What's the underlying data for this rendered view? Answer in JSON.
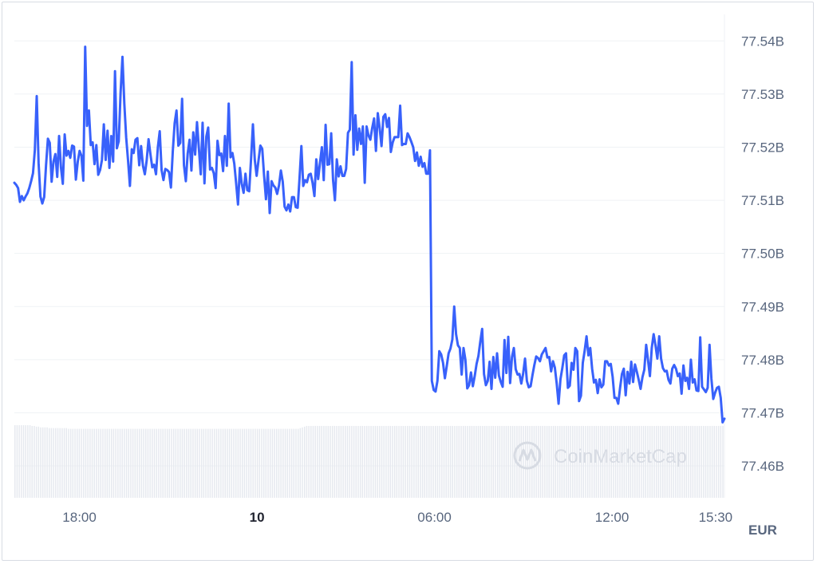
{
  "chart_data": {
    "type": "line",
    "title": "",
    "xlabel": "",
    "ylabel": "",
    "currency": "EUR",
    "watermark": "CoinMarketCap",
    "line_color": "#3861fb",
    "volume_color": "#e6e9ef",
    "y_unit": "B",
    "ylim": [
      77.454,
      77.545
    ],
    "y_ticks": [
      77.54,
      77.53,
      77.52,
      77.51,
      77.5,
      77.49,
      77.48,
      77.47,
      77.46
    ],
    "y_tick_labels": [
      "77.54B",
      "77.53B",
      "77.52B",
      "77.51B",
      "77.50B",
      "77.49B",
      "77.48B",
      "77.47B",
      "77.46B"
    ],
    "x_range_hours": [
      0,
      24
    ],
    "x_ticks": [
      {
        "label": "18:00",
        "hour": 2.2,
        "bold": false
      },
      {
        "label": "10",
        "hour": 8.2,
        "bold": true
      },
      {
        "label": "06:00",
        "hour": 14.2,
        "bold": false
      },
      {
        "label": "12:00",
        "hour": 20.2,
        "bold": false
      },
      {
        "label": "15:30",
        "hour": 23.7,
        "bold": false
      }
    ],
    "series": [
      {
        "values": [
          77.5133,
          77.5129,
          77.5123,
          77.5097,
          77.5108,
          77.51,
          77.5107,
          77.5113,
          77.5123,
          77.5136,
          77.5151,
          77.5195,
          77.5296,
          77.517,
          77.5107,
          77.5094,
          77.5106,
          77.5166,
          77.5216,
          77.5208,
          77.5135,
          77.5173,
          77.5187,
          77.5144,
          77.5221,
          77.5162,
          77.5131,
          77.5224,
          77.5184,
          77.5193,
          77.518,
          77.5203,
          77.5201,
          77.5139,
          77.5172,
          77.5193,
          77.5184,
          77.5137,
          77.5389,
          77.524,
          77.5269,
          77.5204,
          77.5209,
          77.5168,
          77.5204,
          77.5148,
          77.5157,
          77.5176,
          77.5243,
          77.5176,
          77.5231,
          77.5161,
          77.5221,
          77.5173,
          77.5343,
          77.5198,
          77.5211,
          77.5303,
          77.537,
          77.5282,
          77.5218,
          77.5175,
          77.5127,
          77.5196,
          77.5189,
          77.5214,
          77.5217,
          77.5166,
          77.5202,
          77.5165,
          77.5149,
          77.5175,
          77.5215,
          77.5187,
          77.5162,
          77.5167,
          77.5149,
          77.52,
          77.523,
          77.5157,
          77.5138,
          77.5159,
          77.5157,
          77.5153,
          77.5124,
          77.5192,
          77.5245,
          77.5269,
          77.5203,
          77.5208,
          77.5291,
          77.5166,
          77.5136,
          77.5188,
          77.5214,
          77.5156,
          77.5228,
          77.5186,
          77.5247,
          77.5198,
          77.5149,
          77.5246,
          77.5132,
          77.522,
          77.5237,
          77.5158,
          77.5161,
          77.5151,
          77.5123,
          77.5212,
          77.5185,
          77.5188,
          77.5155,
          77.5221,
          77.5165,
          77.5282,
          77.5181,
          77.5189,
          77.5169,
          77.5132,
          77.5092,
          77.5161,
          77.5131,
          77.5114,
          77.515,
          77.5119,
          77.5117,
          77.5178,
          77.5243,
          77.5176,
          77.5146,
          77.5175,
          77.5203,
          77.5197,
          77.5146,
          77.5102,
          77.5154,
          77.5076,
          77.5136,
          77.5128,
          77.5124,
          77.5112,
          77.5128,
          77.5156,
          77.5135,
          77.5088,
          77.5081,
          77.5092,
          77.5079,
          77.5106,
          77.5106,
          77.5087,
          77.5086,
          77.5141,
          77.5202,
          77.5127,
          77.5138,
          77.5134,
          77.5148,
          77.515,
          77.5133,
          77.5108,
          77.5177,
          77.514,
          77.5171,
          77.52,
          77.5138,
          77.5242,
          77.5167,
          77.5168,
          77.5226,
          77.5138,
          77.51,
          77.5177,
          77.5145,
          77.5164,
          77.5146,
          77.5146,
          77.5159,
          77.5227,
          77.5233,
          77.536,
          77.5186,
          77.526,
          77.5195,
          77.5235,
          77.5206,
          77.5239,
          77.5133,
          77.5239,
          77.5222,
          77.5214,
          77.5236,
          77.5254,
          77.5193,
          77.5264,
          77.5236,
          77.5202,
          77.5257,
          77.5262,
          77.5238,
          77.5255,
          77.5191,
          77.5209,
          77.5219,
          77.5219,
          77.5219,
          77.5278,
          77.5204,
          77.5206,
          77.5206,
          77.5226,
          77.5219,
          77.521,
          77.52,
          77.5174,
          77.519,
          77.5165,
          77.5182,
          77.5163,
          77.517,
          77.515,
          77.515,
          77.5194,
          77.476,
          77.4743,
          77.474,
          77.476,
          77.4816,
          77.481,
          77.4794,
          77.4765,
          77.4788,
          77.4812,
          77.4821,
          77.4838,
          77.49,
          77.4848,
          77.4827,
          77.4822,
          77.4772,
          77.4822,
          77.48,
          77.4746,
          77.4752,
          77.4776,
          77.475,
          77.4769,
          77.4792,
          77.4807,
          77.4834,
          77.4858,
          77.4773,
          77.4752,
          77.476,
          77.4796,
          77.4745,
          77.4805,
          77.4766,
          77.4812,
          77.477,
          77.4758,
          77.4749,
          77.4837,
          77.4775,
          77.4843,
          77.4756,
          77.4805,
          77.4822,
          77.4782,
          77.4772,
          77.4773,
          77.4755,
          77.4774,
          77.4802,
          77.476,
          77.4748,
          77.475,
          77.4771,
          77.479,
          77.4806,
          77.4803,
          77.4797,
          77.481,
          77.4816,
          77.4822,
          77.4804,
          77.4805,
          77.4778,
          77.4797,
          77.4785,
          77.4755,
          77.4717,
          77.4763,
          77.4784,
          77.4808,
          77.4812,
          77.4747,
          77.4751,
          77.4794,
          77.4781,
          77.4822,
          77.4816,
          77.4722,
          77.4732,
          77.4794,
          77.4817,
          77.4844,
          77.4808,
          77.4822,
          77.4783,
          77.4757,
          77.4762,
          77.4737,
          77.4763,
          77.4748,
          77.4753,
          77.4797,
          77.4797,
          77.4789,
          77.4792,
          77.4768,
          77.4728,
          77.4728,
          77.4717,
          77.4747,
          77.4773,
          77.4783,
          77.4733,
          77.4777,
          77.4755,
          77.4796,
          77.4758,
          77.4791,
          77.4777,
          77.4762,
          77.4745,
          77.4767,
          77.4781,
          77.4828,
          77.4799,
          77.4769,
          77.4822,
          77.4848,
          77.4827,
          77.4802,
          77.4844,
          77.4802,
          77.4784,
          77.4778,
          77.4779,
          77.4762,
          77.4755,
          77.4783,
          77.479,
          77.4783,
          77.4769,
          77.4774,
          77.4736,
          77.4789,
          77.476,
          77.4766,
          77.4745,
          77.48,
          77.4757,
          77.4763,
          77.4742,
          77.4741,
          77.4842,
          77.4749,
          77.4744,
          77.4739,
          77.4747,
          77.4828,
          77.4764,
          77.4726,
          77.4738,
          77.4747,
          77.4749,
          77.4728,
          77.4682,
          77.4689
        ]
      }
    ],
    "volume": [
      100,
      100,
      100,
      100,
      100,
      100,
      100,
      100,
      99,
      99,
      98,
      98,
      97,
      97,
      97,
      97,
      96,
      96,
      96,
      96,
      96,
      96,
      96,
      96,
      96,
      95,
      95,
      95,
      95,
      95,
      95,
      95,
      95,
      95,
      95,
      95,
      95,
      95,
      95,
      95,
      95,
      95,
      95,
      95,
      95,
      95,
      95,
      95,
      95,
      95,
      95,
      95,
      95,
      95,
      95,
      95,
      95,
      95,
      95,
      95,
      95,
      95,
      95,
      95,
      95,
      95,
      95,
      95,
      95,
      95,
      95,
      95,
      95,
      95,
      95,
      95,
      95,
      95,
      95,
      95,
      95,
      95,
      95,
      95,
      95,
      95,
      95,
      95,
      95,
      95,
      95,
      95,
      95,
      95,
      95,
      95,
      95,
      95,
      95,
      95,
      95,
      95,
      95,
      95,
      95,
      95,
      95,
      95,
      95,
      95,
      95,
      95,
      95,
      95,
      95,
      95,
      95,
      95,
      95,
      95,
      95,
      95,
      95,
      95,
      95,
      95,
      95,
      95,
      95,
      95,
      95,
      95,
      95,
      96,
      97,
      98,
      99,
      99,
      99,
      99,
      99,
      99,
      99,
      99,
      99,
      99,
      99,
      99,
      99,
      99,
      99,
      99,
      99,
      99,
      99,
      99,
      99,
      99,
      99,
      99,
      99,
      99,
      99,
      99,
      99,
      99,
      99,
      99,
      99,
      99,
      99,
      99,
      99,
      99,
      99,
      99,
      99,
      99,
      99,
      99,
      99,
      99,
      99,
      99,
      99,
      99,
      99,
      99,
      99,
      99,
      99,
      99,
      99,
      99,
      99,
      99,
      99,
      99,
      99,
      99,
      99,
      99,
      99,
      99,
      99,
      99,
      99,
      99,
      99,
      99,
      99,
      99,
      99,
      99,
      99,
      99,
      99,
      99,
      99,
      99,
      99,
      99,
      99,
      99,
      99,
      99,
      99,
      99,
      99,
      99,
      99,
      99,
      99,
      99,
      99,
      99,
      99,
      99,
      99,
      99,
      99,
      99,
      99,
      99,
      99,
      99,
      99,
      99,
      99,
      99,
      99,
      99,
      99,
      99,
      99,
      99,
      99,
      99,
      99,
      99,
      99,
      99,
      99,
      99,
      99,
      99,
      99,
      99,
      99,
      99,
      99,
      99,
      99,
      99,
      99,
      99,
      99,
      99,
      99,
      99,
      99,
      99,
      99,
      99,
      99,
      99,
      99,
      99,
      99,
      99,
      99,
      99,
      99,
      99,
      99,
      99,
      99,
      99,
      99,
      99,
      99,
      99,
      99,
      99,
      99,
      99,
      99,
      99,
      99,
      99,
      99,
      99,
      99,
      99,
      99,
      99,
      99,
      99,
      99,
      99,
      99,
      99,
      99,
      99,
      99,
      99,
      99,
      99,
      99,
      99,
      99
    ]
  }
}
